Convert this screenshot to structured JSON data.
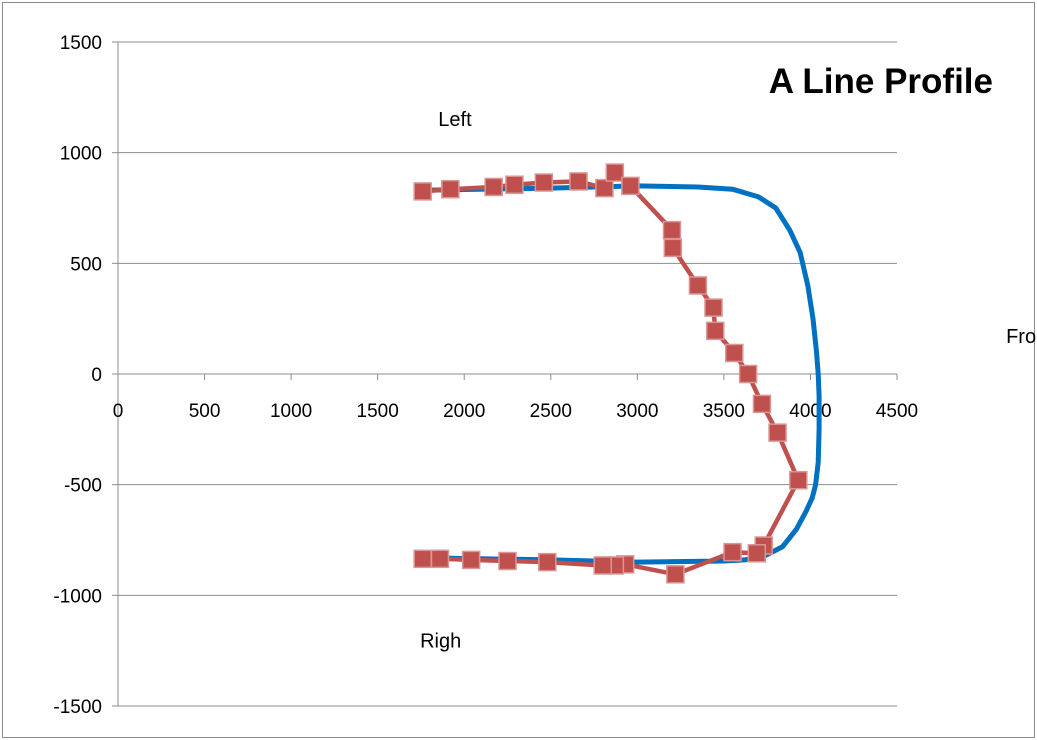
{
  "chart_data": {
    "type": "line",
    "title": "A Line Profile",
    "xlabel": "",
    "ylabel": "",
    "xlim": [
      0,
      4500
    ],
    "ylim": [
      -1500,
      1500
    ],
    "x_ticks": [
      "0",
      "500",
      "1000",
      "1500",
      "2000",
      "2500",
      "3000",
      "3500",
      "4000",
      "4500"
    ],
    "y_ticks": [
      "1500",
      "1000",
      "500",
      "0",
      "-500",
      "-1000",
      "-1500"
    ],
    "grid": true,
    "legend": false,
    "annotations": [
      {
        "text": "Left",
        "x": 1850,
        "y": 1120
      },
      {
        "text": "Front",
        "x": 5130,
        "y": 140
      },
      {
        "text": "Righ",
        "x": 1745,
        "y": -1235
      }
    ],
    "series": [
      {
        "color": "#0070c0",
        "marker": "none",
        "x": [
          1750,
          2500,
          3000,
          3350,
          3550,
          3700,
          3800,
          3880,
          3940,
          3985,
          4015,
          4035,
          4045,
          4050,
          4050,
          4045,
          4030,
          4010,
          3975,
          3920,
          3840,
          3740,
          3620,
          3500,
          3000,
          2500,
          1750
        ],
        "y": [
          830,
          840,
          850,
          845,
          835,
          800,
          750,
          650,
          550,
          400,
          250,
          100,
          0,
          -100,
          -250,
          -400,
          -500,
          -560,
          -620,
          -700,
          -780,
          -820,
          -840,
          -845,
          -850,
          -840,
          -830
        ]
      },
      {
        "color": "#c0504d",
        "marker": "square",
        "x": [
          1760,
          1920,
          2170,
          2290,
          2460,
          2660,
          2810,
          2870,
          2960,
          3200,
          3205,
          3350,
          3440,
          3450,
          3560,
          3640,
          3720,
          3810,
          3930,
          3730,
          3690,
          3550,
          3220,
          2930,
          2870,
          2800,
          2480,
          2250,
          2040,
          1860,
          1760
        ],
        "y": [
          825,
          835,
          845,
          855,
          865,
          870,
          840,
          910,
          850,
          650,
          570,
          400,
          300,
          195,
          95,
          0,
          -135,
          -265,
          -480,
          -775,
          -810,
          -805,
          -905,
          -860,
          -865,
          -865,
          -850,
          -845,
          -840,
          -835,
          -835
        ]
      }
    ]
  }
}
